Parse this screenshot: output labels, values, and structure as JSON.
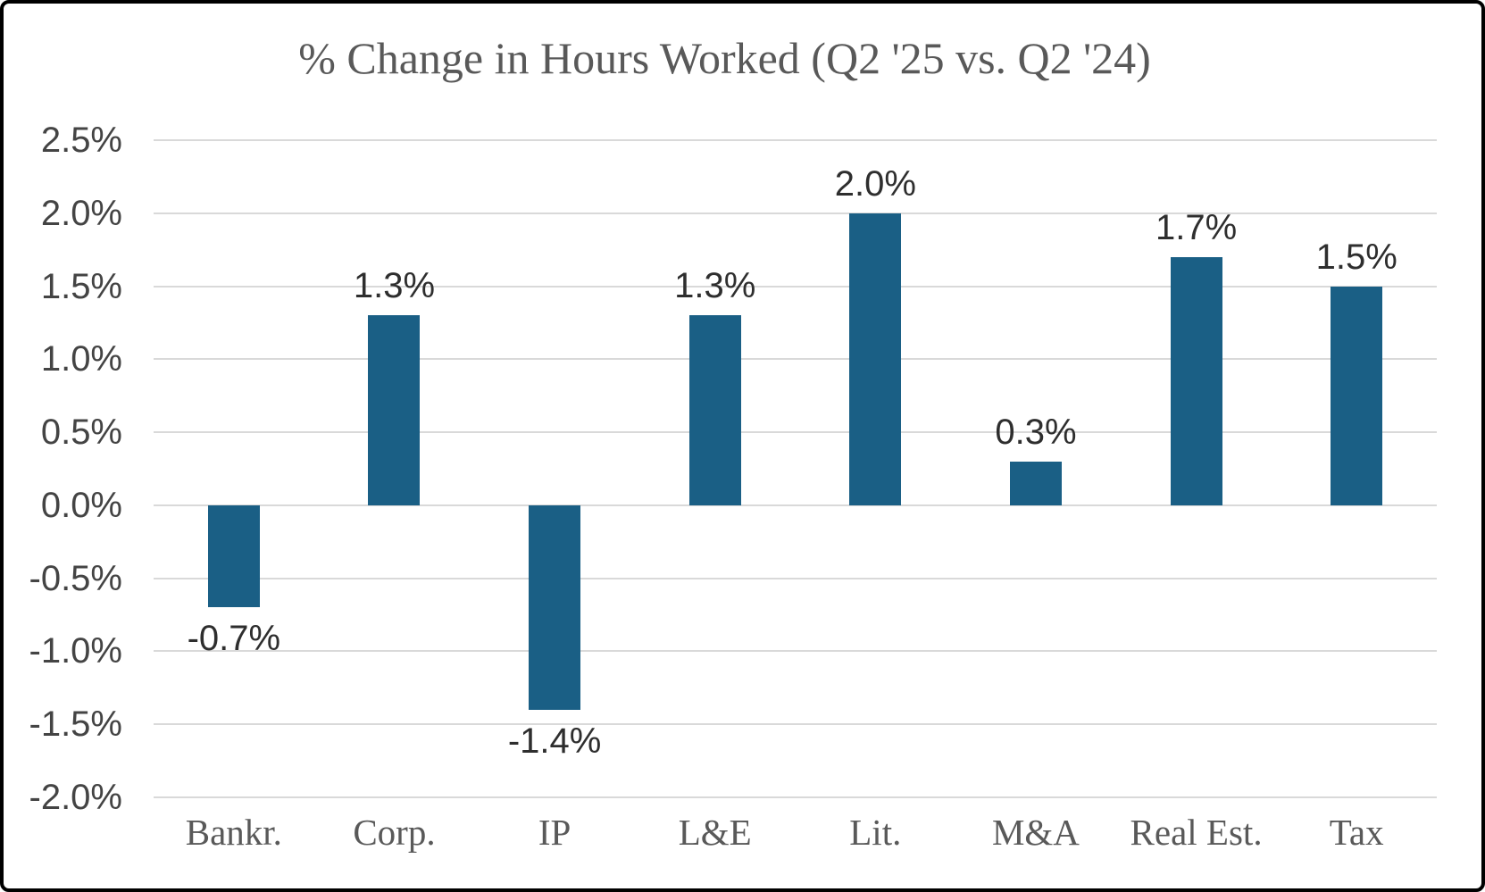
{
  "chart_data": {
    "type": "bar",
    "title": "% Change in Hours Worked (Q2 '25 vs. Q2 '24)",
    "categories": [
      "Bankr.",
      "Corp.",
      "IP",
      "L&E",
      "Lit.",
      "M&A",
      "Real Est.",
      "Tax"
    ],
    "values": [
      -0.7,
      1.3,
      -1.4,
      1.3,
      2.0,
      0.3,
      1.7,
      1.5
    ],
    "value_labels": [
      "-0.7%",
      "1.3%",
      "-1.4%",
      "1.3%",
      "2.0%",
      "0.3%",
      "1.7%",
      "1.5%"
    ],
    "y_ticks": [
      "2.5%",
      "2.0%",
      "1.5%",
      "1.0%",
      "0.5%",
      "0.0%",
      "-0.5%",
      "-1.0%",
      "-1.5%",
      "-2.0%"
    ],
    "y_tick_values": [
      2.5,
      2.0,
      1.5,
      1.0,
      0.5,
      0.0,
      -0.5,
      -1.0,
      -1.5,
      -2.0
    ],
    "ylim": [
      -2.0,
      2.5
    ],
    "xlabel": "",
    "ylabel": "",
    "grid": true,
    "legend": "none",
    "colors": {
      "bar": "#1a5f85",
      "gridline": "#d9d9d9",
      "title_text": "#595959",
      "y_axis_text": "#444444",
      "x_axis_text": "#595959",
      "data_label_text": "#2e2e2e",
      "frame_border": "#000000",
      "background": "#ffffff"
    }
  }
}
